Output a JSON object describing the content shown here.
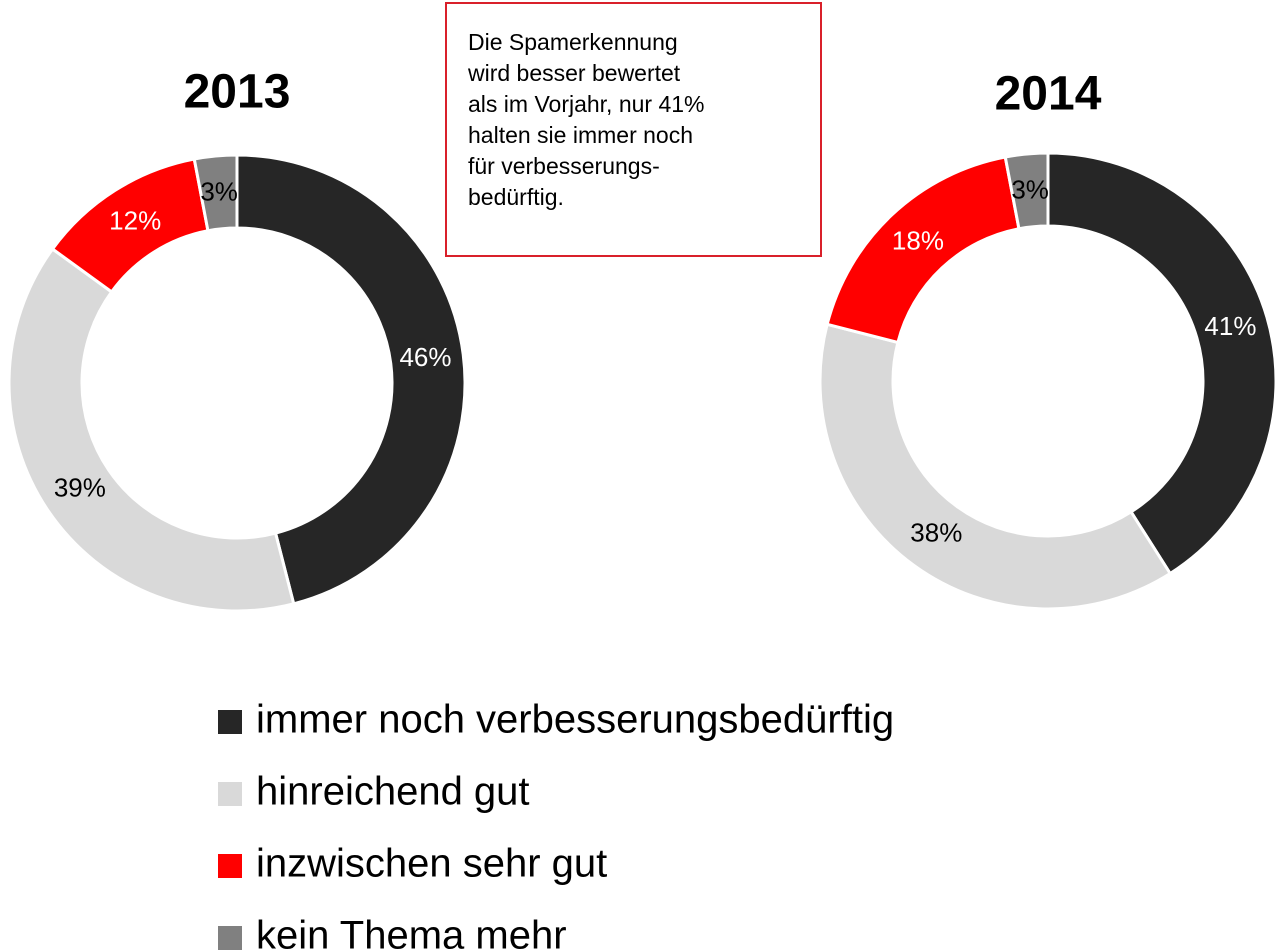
{
  "chart_data": [
    {
      "type": "donut",
      "title": "2013",
      "categories": [
        "immer noch verbesserungsbedürftig",
        "hinreichend gut",
        "inzwischen sehr gut",
        "kein Thema mehr"
      ],
      "values": [
        46,
        39,
        12,
        3
      ],
      "value_labels": [
        "46%",
        "39%",
        "12%",
        "3%"
      ],
      "colors": [
        "#262626",
        "#d9d9d9",
        "#ff0000",
        "#808080"
      ]
    },
    {
      "type": "donut",
      "title": "2014",
      "categories": [
        "immer noch verbesserungsbedürftig",
        "hinreichend gut",
        "inzwischen sehr gut",
        "kein Thema mehr"
      ],
      "values": [
        41,
        38,
        18,
        3
      ],
      "value_labels": [
        "41%",
        "38%",
        "18%",
        "3%"
      ],
      "colors": [
        "#262626",
        "#d9d9d9",
        "#ff0000",
        "#808080"
      ]
    }
  ],
  "annotation": [
    "Die Spamerkennung",
    "wird besser bewertet",
    "als im Vorjahr, nur 41%",
    "halten sie immer noch",
    "für verbesserungs-",
    "bedürftig."
  ]
}
